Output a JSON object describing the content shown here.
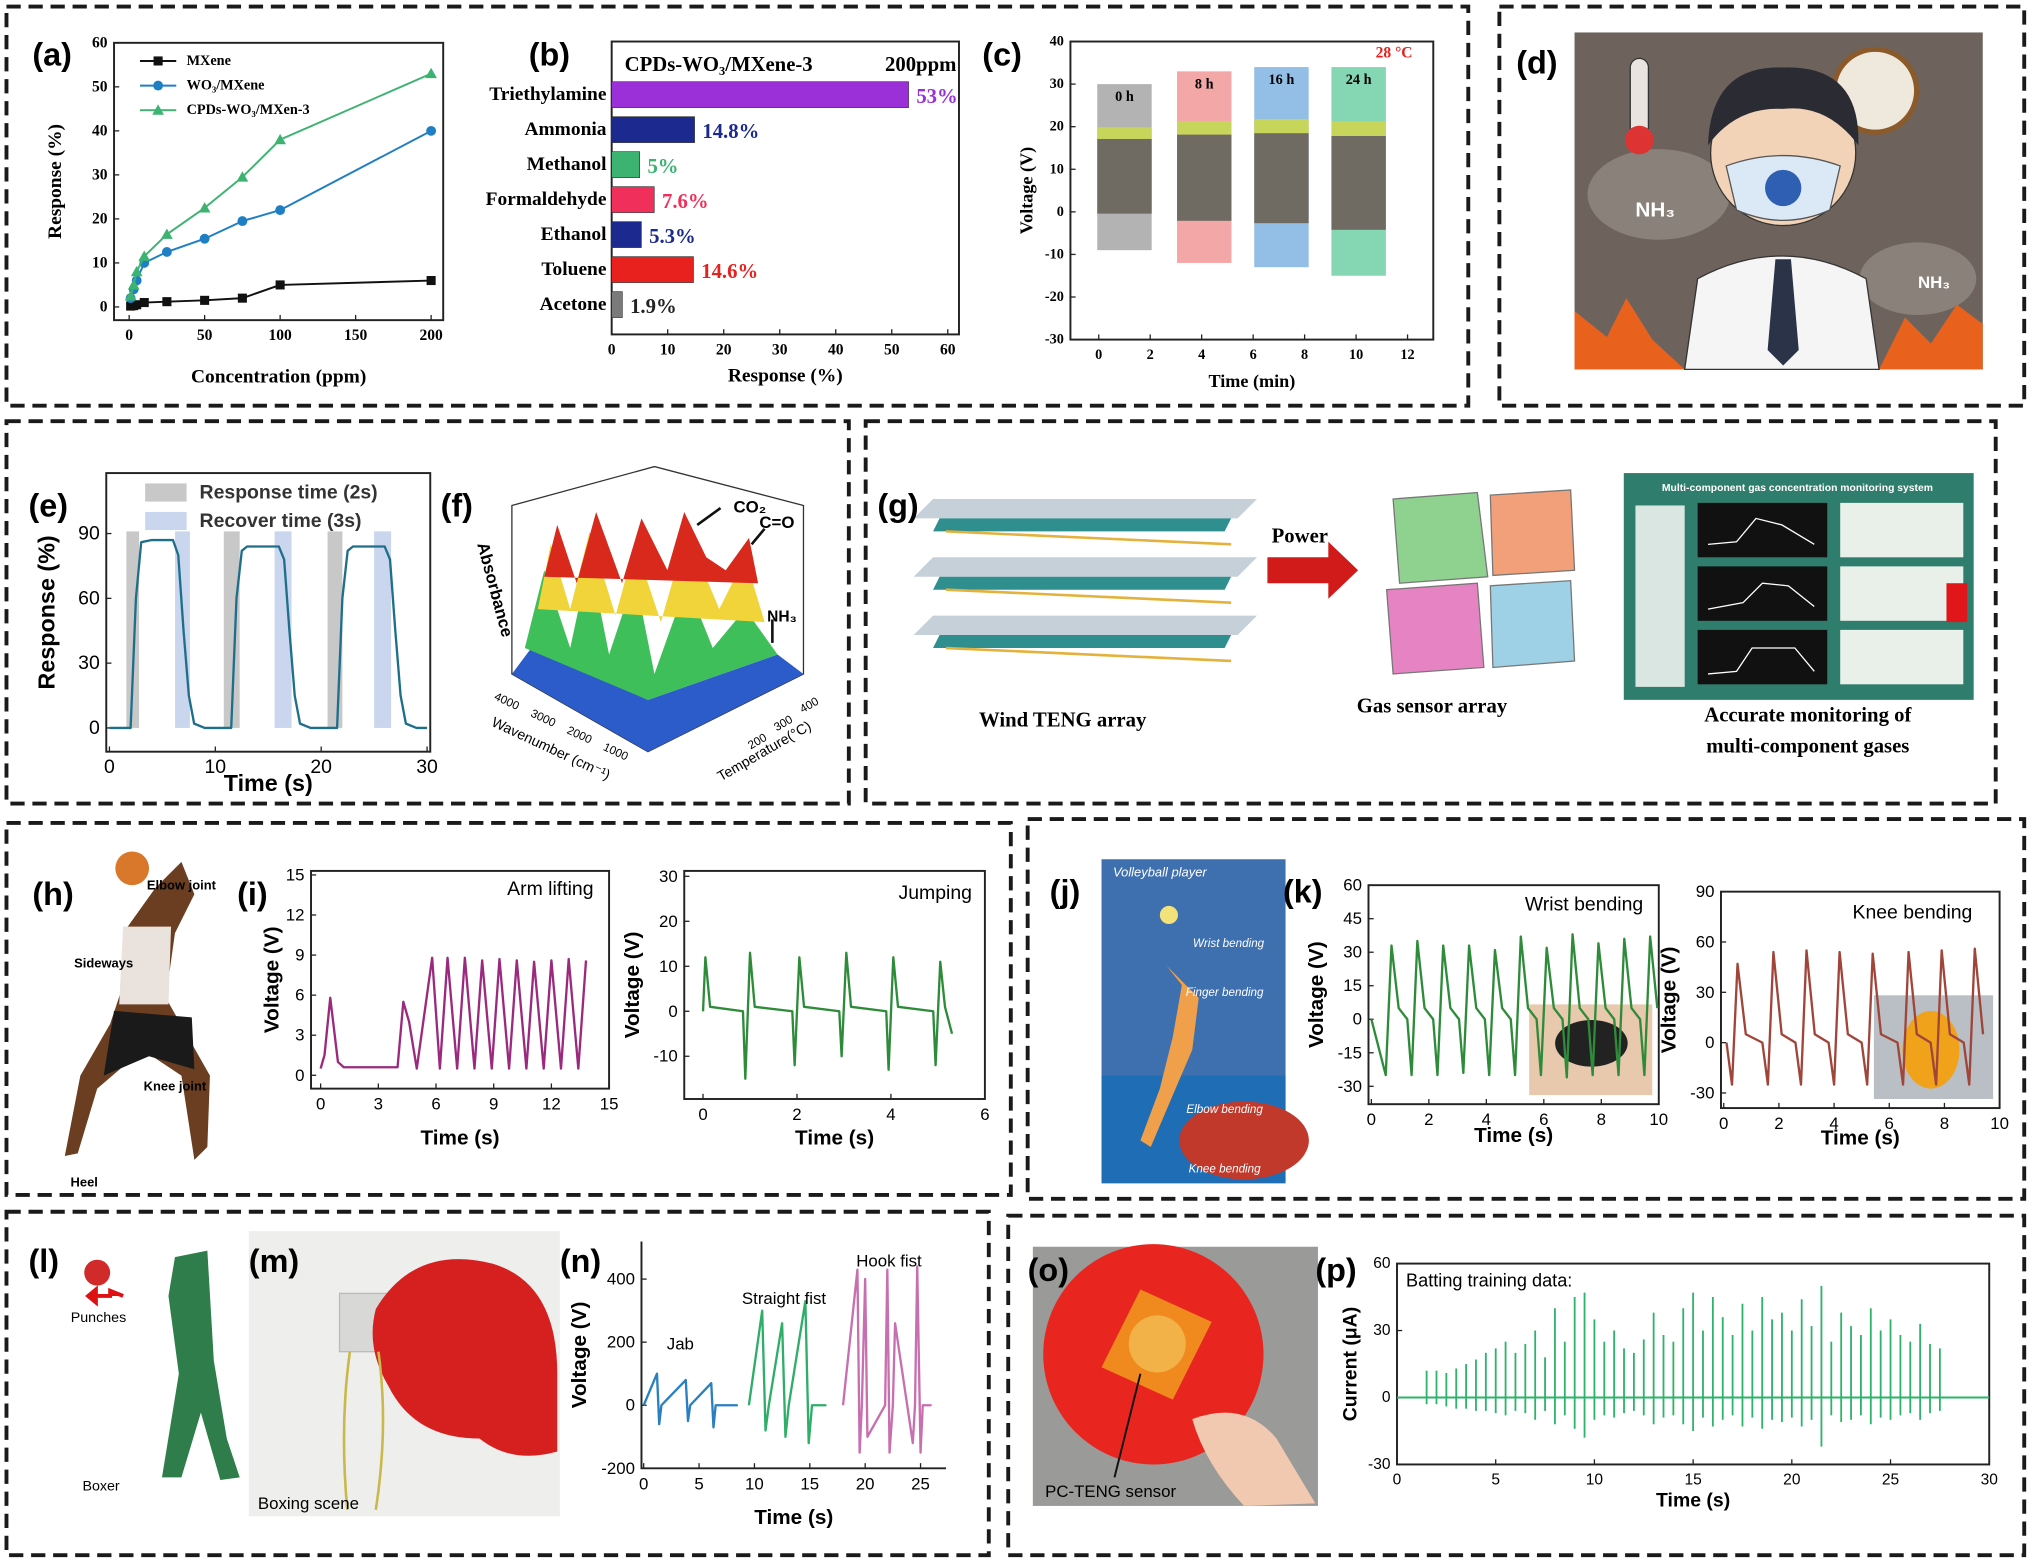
{
  "panel_labels": [
    "(a)",
    "(b)",
    "(c)",
    "(d)",
    "(e)",
    "(f)",
    "(g)",
    "(h)",
    "(i)",
    "(j)",
    "(k)",
    "(l)",
    "(m)",
    "(n)",
    "(o)",
    "(p)"
  ],
  "illustrations": {
    "d": [
      "NH₃",
      "NH₃"
    ],
    "f": [
      "Absorbance",
      "CO₂",
      "C=O",
      "NH₃",
      "Wavenumber (cm⁻¹)",
      "Temperature(°C)",
      "4000",
      "3000",
      "2000",
      "1000",
      "400",
      "300",
      "200"
    ],
    "g": [
      "Power",
      "Wind TENG array",
      "Gas sensor array",
      "Accurate monitoring of",
      "multi-component gases",
      "Multi-component gas concentration monitoring system"
    ],
    "h": [
      "Elbow joint",
      "Sideways",
      "Knee joint",
      "Heel"
    ],
    "j": [
      "Volleyball player",
      "Wrist bending",
      "Finger bending",
      "Elbow bending",
      "Knee bending"
    ],
    "l": [
      "Punches",
      "Boxer"
    ],
    "m": [
      "Boxing scene"
    ],
    "o": [
      "PC-TENG sensor"
    ]
  },
  "chart_data": [
    {
      "type": "line",
      "xlabel": "Concentration (ppm)",
      "ylabel": "Response (%)",
      "x": [
        1,
        3,
        5,
        10,
        25,
        50,
        75,
        100,
        200
      ],
      "xlim": [
        -10,
        208
      ],
      "ylim": [
        -3,
        60
      ],
      "xticks": [
        0,
        50,
        100,
        150,
        200
      ],
      "yticks": [
        0,
        10,
        20,
        30,
        40,
        50,
        60
      ],
      "legend": "upper left",
      "series": [
        {
          "name": "MXene",
          "color": "#111111",
          "marker": "square",
          "values": [
            0.2,
            0.3,
            0.5,
            1,
            1.2,
            1.5,
            2,
            5,
            6
          ]
        },
        {
          "name": "WO₃/MXene",
          "color": "#1f7fc4",
          "marker": "circle",
          "values": [
            2,
            4,
            6,
            10,
            12.5,
            15.5,
            19.5,
            22,
            40
          ]
        },
        {
          "name": "CPDs-WO₃/MXen-3",
          "color": "#3cb371",
          "marker": "triangle",
          "values": [
            2.5,
            5,
            8,
            11.5,
            16.5,
            22.5,
            29.5,
            38,
            53
          ]
        }
      ]
    },
    {
      "type": "hbar",
      "title": "CPDs-WO₃/MXene-3",
      "subtitle": "200ppm",
      "xlabel": "Response (%)",
      "categories": [
        "Triethylamine",
        "Ammonia",
        "Methanol",
        "Formaldehyde",
        "Ethanol",
        "Toluene",
        "Acetone"
      ],
      "values": [
        53,
        14.8,
        5,
        7.6,
        5.3,
        14.6,
        1.9
      ],
      "value_labels": [
        "53%",
        "14.8%",
        "5%",
        "7.6%",
        "5.3%",
        "14.6%",
        "1.9%"
      ],
      "colors": [
        "#9b30d9",
        "#1c2a8f",
        "#3cb371",
        "#f0305a",
        "#1c2a8f",
        "#e8201e",
        "#7a7a7a"
      ],
      "label_colors": [
        "#9b30d9",
        "#1c2a8f",
        "#3cb371",
        "#f0305a",
        "#1c2a8f",
        "#e8201e",
        "#222222"
      ],
      "xlim": [
        0,
        62
      ],
      "xticks": [
        0,
        10,
        20,
        30,
        40,
        50,
        60
      ]
    },
    {
      "type": "range",
      "annotation": "28 °C",
      "xlabel": "Time (min)",
      "ylabel": "Voltage (V)",
      "categories": [
        "0 h",
        "8 h",
        "16 h",
        "24 h"
      ],
      "x": [
        1,
        4.1,
        7.1,
        10.1
      ],
      "values": [
        [
          -9,
          30
        ],
        [
          -12,
          33
        ],
        [
          -13,
          34
        ],
        [
          -15,
          34
        ]
      ],
      "colors": [
        "#9a9a9a",
        "#f08a8a",
        "#6fa8dc",
        "#5cc99a"
      ],
      "xlim": [
        -1.1,
        13
      ],
      "ylim": [
        -30,
        40
      ],
      "xticks": [
        0,
        2,
        4,
        6,
        8,
        10,
        12
      ],
      "yticks": [
        -30,
        -20,
        -10,
        0,
        10,
        20,
        30,
        40
      ]
    },
    {
      "type": "line",
      "xlabel": "Time (s)",
      "ylabel": "Response (%)",
      "color": "#1f6f8b",
      "x": [
        0,
        1,
        2,
        2.5,
        3,
        4,
        5,
        6,
        6.5,
        7,
        7.5,
        8,
        9,
        10,
        11,
        11.5,
        12,
        12.5,
        13,
        14,
        15,
        16,
        16.5,
        17,
        17.5,
        18,
        19,
        20,
        21,
        21.5,
        22,
        22.5,
        23,
        24,
        25,
        26,
        26.5,
        27,
        27.5,
        28,
        29,
        30
      ],
      "values": [
        0,
        0,
        0,
        60,
        86,
        87,
        87,
        87,
        80,
        45,
        15,
        2,
        0,
        0,
        0,
        0,
        60,
        82,
        84,
        84,
        84,
        84,
        78,
        45,
        15,
        2,
        0,
        0,
        0,
        0,
        60,
        82,
        84,
        84,
        84,
        84,
        78,
        45,
        15,
        2,
        0,
        0
      ],
      "bands": [
        {
          "name": "Response time (2s)",
          "color": "#c8c8c8",
          "ranges": [
            [
              1.6,
              2.8
            ],
            [
              10.8,
              12.3
            ],
            [
              20.6,
              22
            ]
          ]
        },
        {
          "name": "Recover time (3s)",
          "color": "#c9d6ee",
          "ranges": [
            [
              6.2,
              7.6
            ],
            [
              15.6,
              17.2
            ],
            [
              25,
              26.6
            ]
          ]
        }
      ],
      "xlim": [
        -0.3,
        30.3
      ],
      "ylim": [
        -11,
        118
      ],
      "xticks": [
        0,
        10,
        20,
        30
      ],
      "yticks": [
        0,
        30,
        60,
        90
      ]
    },
    {
      "type": "line",
      "title": "Arm lifting",
      "xlabel": "Time (s)",
      "ylabel": "Voltage (V)",
      "color": "#9b2a7f",
      "x": [
        0,
        0.2,
        0.5,
        0.9,
        1.2,
        4,
        4.3,
        4.6,
        5,
        5.8,
        6.2,
        6.6,
        7.1,
        7.5,
        8,
        8.4,
        8.9,
        9.3,
        9.8,
        10.2,
        10.7,
        11.1,
        11.6,
        12,
        12.5,
        12.9,
        13.4,
        13.8
      ],
      "values": [
        0.5,
        1.5,
        5.8,
        1,
        0.6,
        0.6,
        5.5,
        4,
        0.5,
        8.8,
        0.5,
        8.8,
        0.5,
        8.8,
        0.5,
        8.6,
        0.5,
        8.7,
        0.5,
        8.6,
        0.5,
        8.5,
        0.5,
        8.6,
        0.5,
        8.7,
        0.5,
        8.6
      ],
      "xlim": [
        -0.5,
        15
      ],
      "ylim": [
        -1,
        15.3
      ],
      "xticks": [
        0,
        3,
        6,
        9,
        12,
        15
      ],
      "yticks": [
        0,
        3,
        6,
        9,
        12,
        15
      ]
    },
    {
      "type": "line",
      "title": "Jumping",
      "xlabel": "Time (s)",
      "ylabel": "Voltage (V)",
      "color": "#2e8b3a",
      "x": [
        0,
        0.05,
        0.15,
        0.85,
        0.9,
        1.0,
        1.1,
        1.9,
        1.95,
        2.05,
        2.15,
        2.9,
        2.95,
        3.05,
        3.15,
        3.9,
        3.95,
        4.05,
        4.15,
        4.9,
        4.95,
        5.05,
        5.15,
        5.3
      ],
      "values": [
        0,
        12,
        1,
        0,
        -15,
        13,
        1,
        0,
        -12,
        12,
        1,
        0,
        -10,
        13,
        1,
        0,
        -13,
        12,
        1,
        0,
        -12,
        11,
        1,
        -5
      ],
      "xlim": [
        -0.4,
        6
      ],
      "ylim": [
        -19.5,
        31.2
      ],
      "xticks": [
        0,
        2,
        4,
        6
      ],
      "yticks": [
        -10,
        0,
        10,
        20,
        30
      ]
    },
    {
      "type": "line",
      "title": "Wrist bending",
      "xlabel": "Time (s)",
      "ylabel": "Voltage (V)",
      "color": "#2e8b3a",
      "x": [
        0,
        0.5,
        0.7,
        0.95,
        1.25,
        1.4,
        1.6,
        1.85,
        2.15,
        2.3,
        2.5,
        2.75,
        3.05,
        3.2,
        3.4,
        3.65,
        3.95,
        4.1,
        4.3,
        4.55,
        4.85,
        5.0,
        5.2,
        5.45,
        5.75,
        5.9,
        6.1,
        6.35,
        6.65,
        6.8,
        7.0,
        7.25,
        7.55,
        7.7,
        7.9,
        8.15,
        8.45,
        8.6,
        8.8,
        9.05,
        9.35,
        9.5,
        9.7,
        9.95
      ],
      "values": [
        0,
        -25,
        33,
        5,
        0,
        -25,
        35,
        5,
        0,
        -25,
        33,
        5,
        0,
        -24,
        33,
        5,
        0,
        -25,
        31,
        5,
        0,
        -25,
        37,
        5,
        0,
        -25,
        32,
        5,
        0,
        -26,
        38,
        5,
        0,
        -25,
        34,
        5,
        0,
        -25,
        36,
        5,
        0,
        -25,
        37,
        5
      ],
      "xlim": [
        -0.1,
        10
      ],
      "ylim": [
        -38,
        60
      ],
      "xticks": [
        0,
        2,
        4,
        6,
        8,
        10
      ],
      "yticks": [
        -30,
        -15,
        0,
        15,
        30,
        45,
        60
      ]
    },
    {
      "type": "line",
      "title": "Knee bending",
      "xlabel": "Time (s)",
      "ylabel": "Voltage (V)",
      "color": "#a0453a",
      "x": [
        0.1,
        0.3,
        0.5,
        0.8,
        1.4,
        1.6,
        1.8,
        2.1,
        2.6,
        2.8,
        3.0,
        3.3,
        3.8,
        4.0,
        4.2,
        4.5,
        5.0,
        5.2,
        5.4,
        5.7,
        6.3,
        6.5,
        6.7,
        7.0,
        7.5,
        7.7,
        7.9,
        8.2,
        8.7,
        8.9,
        9.1,
        9.4
      ],
      "values": [
        0,
        -25,
        47,
        5,
        0,
        -25,
        54,
        5,
        0,
        -25,
        55,
        5,
        0,
        -25,
        54,
        5,
        0,
        -25,
        53,
        5,
        0,
        -25,
        54,
        5,
        0,
        -25,
        55,
        5,
        0,
        -25,
        56,
        5
      ],
      "xlim": [
        -0.1,
        10
      ],
      "ylim": [
        -39,
        90
      ],
      "xticks": [
        0,
        2,
        4,
        6,
        8,
        10
      ],
      "yticks": [
        -30,
        0,
        30,
        60,
        90
      ]
    },
    {
      "type": "line",
      "xlabel": "Time (s)",
      "ylabel": "Voltage (V)",
      "xlim": [
        -0.2,
        27.3
      ],
      "ylim": [
        -200,
        519
      ],
      "xticks": [
        0,
        5,
        10,
        15,
        20,
        25
      ],
      "yticks": [
        -200,
        0,
        200,
        400
      ],
      "series": [
        {
          "name": "Jab",
          "color": "#2a7fc0",
          "x": [
            0,
            1.2,
            1.4,
            1.6,
            3.8,
            4.0,
            4.2,
            6.1,
            6.3,
            6.5,
            8.5
          ],
          "values": [
            0,
            100,
            -60,
            0,
            80,
            -50,
            0,
            70,
            -70,
            0,
            0
          ]
        },
        {
          "name": "Straight fist",
          "color": "#2fae6a",
          "x": [
            9.5,
            10.7,
            11,
            11.3,
            12.5,
            12.8,
            13.1,
            14.6,
            14.9,
            15.2,
            16.5
          ],
          "values": [
            0,
            300,
            -80,
            0,
            260,
            -100,
            0,
            330,
            -120,
            0,
            0
          ]
        },
        {
          "name": "Hook fist",
          "color": "#c86fb0",
          "x": [
            18,
            19.3,
            19.5,
            19.7,
            20,
            20.2,
            21.8,
            22,
            22.2,
            22.5,
            22.7,
            24.3,
            24.5,
            24.7,
            25,
            25.2,
            26
          ],
          "values": [
            0,
            430,
            -150,
            0,
            400,
            -100,
            0,
            430,
            -150,
            0,
            260,
            -120,
            0,
            440,
            -150,
            0,
            0
          ]
        }
      ]
    },
    {
      "type": "stem",
      "title": "Batting training data:",
      "xlabel": "Time (s)",
      "ylabel": "Current (μA)",
      "color": "#2db36b",
      "xlim": [
        0,
        30
      ],
      "ylim": [
        -30,
        60
      ],
      "xticks": [
        0,
        5,
        10,
        15,
        20,
        25,
        30
      ],
      "yticks": [
        -30,
        0,
        30,
        60
      ],
      "x": [
        1.5,
        2,
        2.5,
        3,
        3.5,
        4,
        4.5,
        5,
        5.5,
        6,
        6.5,
        7,
        7.5,
        8,
        8.5,
        9,
        9.5,
        10,
        10.5,
        11,
        11.5,
        12,
        12.5,
        13,
        13.5,
        14,
        14.5,
        15,
        15.5,
        16,
        16.5,
        17,
        17.5,
        18,
        18.5,
        19,
        19.5,
        20,
        20.5,
        21,
        21.5,
        22,
        22.5,
        23,
        23.5,
        24,
        24.5,
        25,
        25.5,
        26,
        26.5,
        27,
        27.5
      ],
      "series": [
        {
          "values": [
            12,
            12,
            11,
            13,
            15,
            17,
            20,
            22,
            25,
            20,
            24,
            30,
            18,
            40,
            25,
            45,
            47,
            35,
            25,
            30,
            22,
            20,
            26,
            38,
            28,
            25,
            40,
            47,
            30,
            45,
            36,
            28,
            42,
            30,
            45,
            35,
            38,
            30,
            44,
            32,
            50,
            25,
            38,
            32,
            28,
            40,
            30,
            35,
            28,
            25,
            33,
            24,
            22
          ]
        },
        {
          "values": [
            -3,
            -3,
            -4,
            -5,
            -5,
            -6,
            -6,
            -7,
            -8,
            -6,
            -7,
            -10,
            -6,
            -12,
            -8,
            -14,
            -18,
            -10,
            -8,
            -9,
            -7,
            -6,
            -8,
            -12,
            -9,
            -8,
            -12,
            -15,
            -9,
            -13,
            -10,
            -8,
            -13,
            -9,
            -14,
            -10,
            -11,
            -9,
            -13,
            -10,
            -22,
            -8,
            -11,
            -10,
            -8,
            -12,
            -9,
            -10,
            -8,
            -7,
            -10,
            -7,
            -6
          ]
        }
      ]
    }
  ]
}
